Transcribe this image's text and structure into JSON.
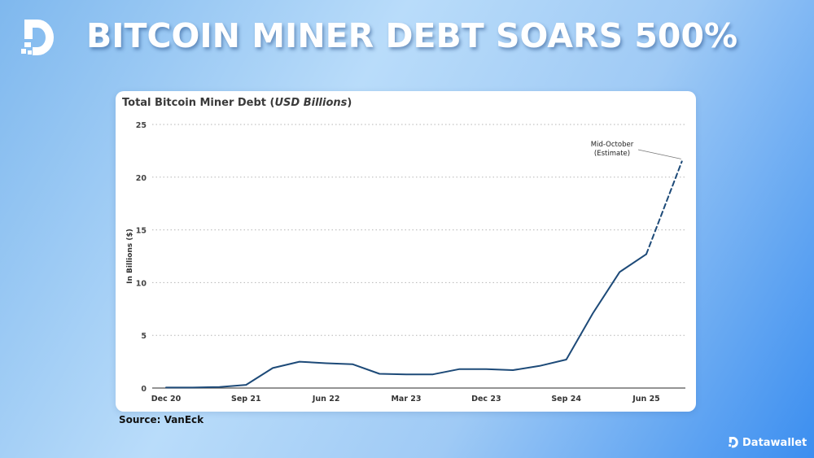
{
  "header": {
    "title": "BITCOIN MINER DEBT SOARS 500%"
  },
  "brand": {
    "name": "Datawallet"
  },
  "source": "Source: VanEck",
  "chart_data": {
    "type": "line",
    "title_main": "Total Bitcoin Miner Debt (",
    "title_unit": "USD Billions",
    "title_close": ")",
    "ylabel": "In Billions ($)",
    "xlabel": "",
    "ylim": [
      0,
      25
    ],
    "yticks": [
      "0",
      "5",
      "10",
      "15",
      "20",
      "25"
    ],
    "xtick_labels": [
      "Dec 20",
      "Sep 21",
      "Jun 22",
      "Mar 23",
      "Dec 23",
      "Sep 24",
      "Jun 25"
    ],
    "grid": "horizontal dotted",
    "series": [
      {
        "x": [
          "Dec 20",
          "Mar 21",
          "Jun 21",
          "Sep 21",
          "Dec 21",
          "Mar 22",
          "Jun 22",
          "Sep 22",
          "Dec 22",
          "Mar 23",
          "Jun 23",
          "Sep 23",
          "Dec 23",
          "Mar 24",
          "Jun 24",
          "Sep 24",
          "Dec 24",
          "Mar 25",
          "Jun 25"
        ],
        "values": [
          0.05,
          0.05,
          0.1,
          0.3,
          1.9,
          2.5,
          2.35,
          2.25,
          1.35,
          1.3,
          1.3,
          1.8,
          1.8,
          1.7,
          2.1,
          2.7,
          7.1,
          11.0,
          12.7
        ],
        "style": "solid"
      },
      {
        "x": [
          "Jun 25",
          "Oct 25"
        ],
        "values": [
          12.7,
          21.5
        ],
        "style": "dashed"
      }
    ],
    "annotation": {
      "line1": "Mid-October",
      "line2": "(Estimate)"
    },
    "colors": {
      "line": "#1d4a78",
      "grid": "#b5b5b5",
      "axis": "#555555"
    }
  }
}
